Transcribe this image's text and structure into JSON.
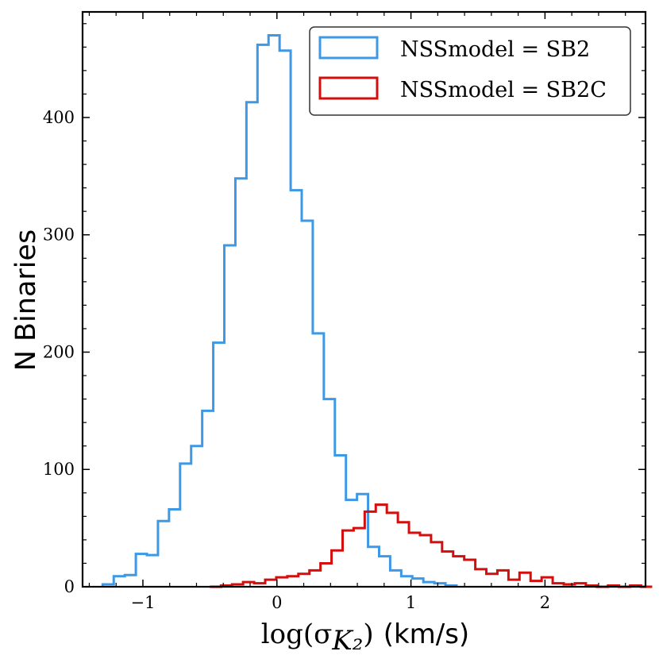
{
  "chart_data": {
    "type": "histogram",
    "xlabel_math": "log(σ",
    "xlabel_sub": "K₂",
    "xlabel_close": ")",
    "xlabel_unit": "(km/s)",
    "ylabel": "N Binaries",
    "xlim": [
      -1.45,
      2.75
    ],
    "ylim": [
      0,
      490
    ],
    "xticks": [
      -1,
      0,
      1,
      2
    ],
    "xtick_labels": [
      "−1",
      "0",
      "1",
      "2"
    ],
    "yticks": [
      0,
      100,
      200,
      300,
      400
    ],
    "ytick_labels": [
      "0",
      "100",
      "200",
      "300",
      "400"
    ],
    "legend_position": "top-right",
    "series": [
      {
        "name": "NSSmodel = SB2",
        "color": "#3d98e5",
        "bin_start": -1.3,
        "bin_width": 0.0825,
        "values": [
          2,
          9,
          10,
          28,
          27,
          56,
          66,
          105,
          120,
          150,
          208,
          291,
          348,
          413,
          462,
          470,
          457,
          338,
          312,
          216,
          160,
          112,
          74,
          79,
          34,
          26,
          14,
          9,
          7,
          4,
          3,
          1
        ]
      },
      {
        "name": "NSSmodel = SB2C",
        "color": "#d40d0d",
        "bin_start": -0.5,
        "bin_width": 0.0825,
        "values": [
          0,
          1,
          2,
          4,
          3,
          6,
          8,
          9,
          11,
          14,
          20,
          31,
          48,
          50,
          64,
          70,
          63,
          55,
          46,
          44,
          38,
          30,
          26,
          23,
          15,
          11,
          14,
          6,
          12,
          5,
          8,
          3,
          2,
          3,
          1,
          0,
          1,
          0,
          1,
          0
        ]
      }
    ]
  }
}
